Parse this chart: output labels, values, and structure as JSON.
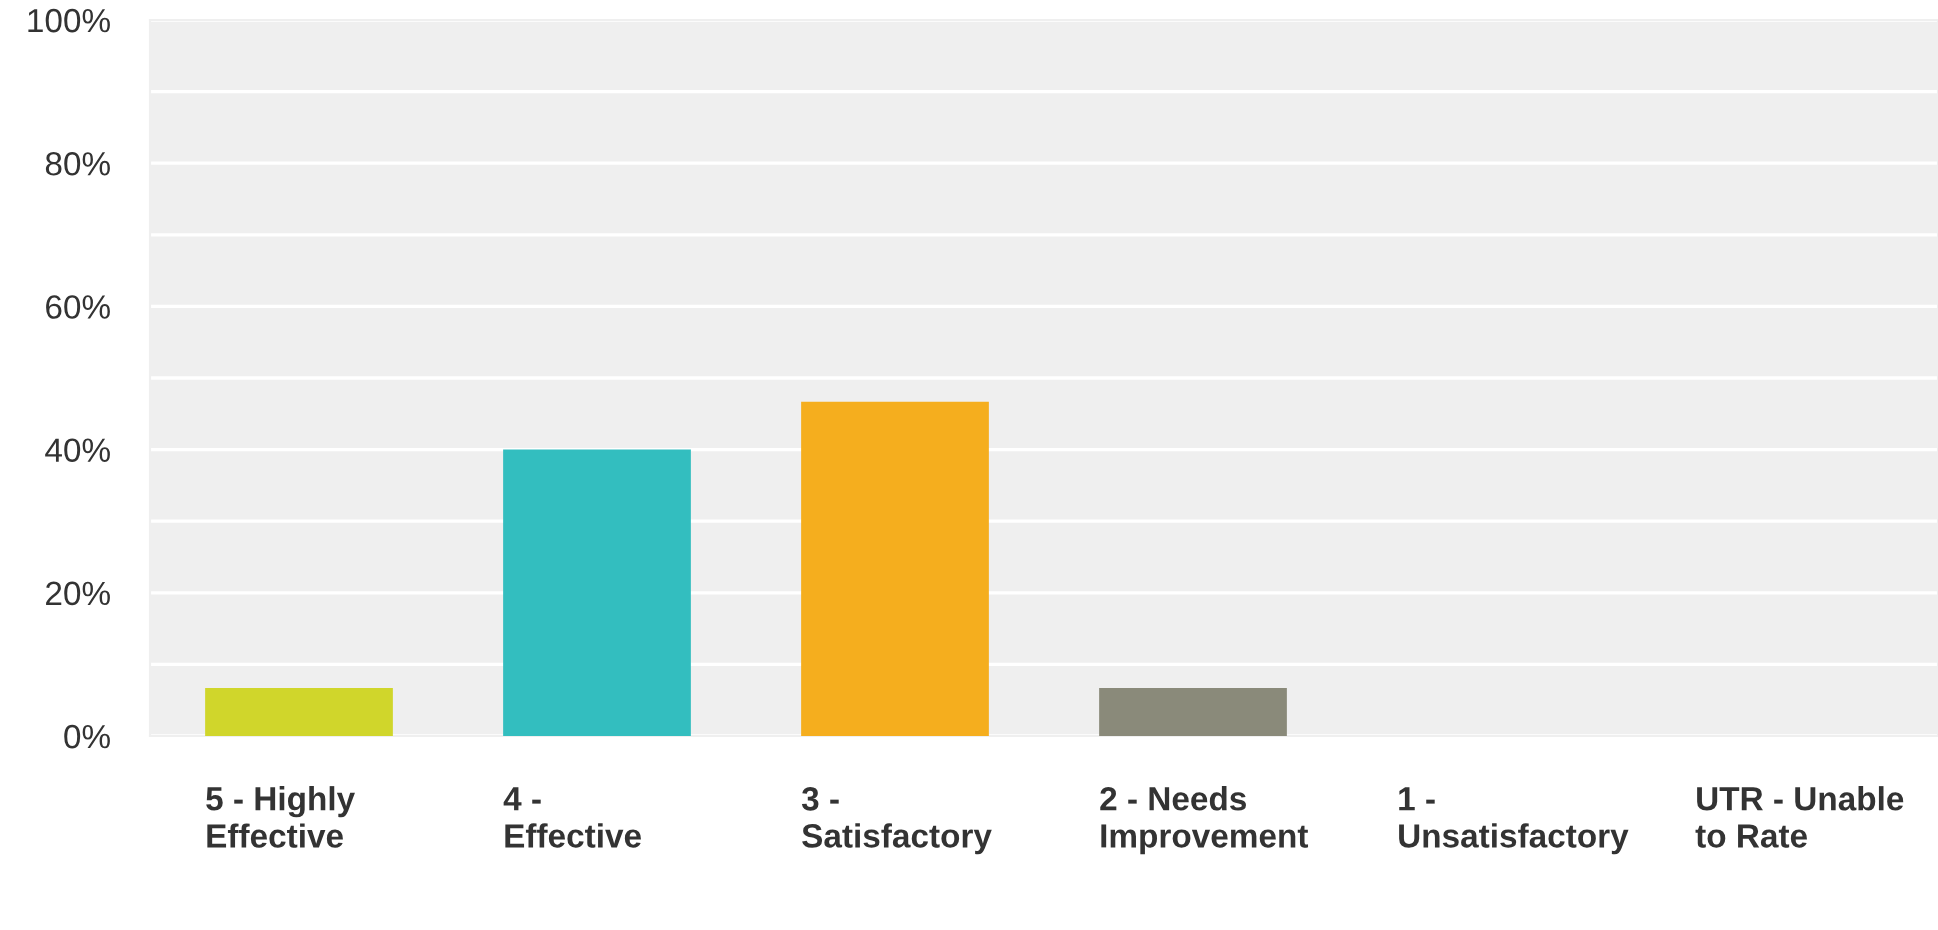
{
  "chart_data": {
    "type": "bar",
    "categories": [
      "5 - Highly Effective",
      "4 - Effective",
      "3 - Satisfactory",
      "2 - Needs Improvement",
      "1 - Unsatisfactory",
      "UTR - Unable to Rate"
    ],
    "values": [
      6.7,
      40,
      46.7,
      6.7,
      0,
      0
    ],
    "colors": [
      "#d0d62b",
      "#33bebf",
      "#f5ae1e",
      "#8a8a7a",
      "#e0605a",
      "#8c5fa5"
    ],
    "ylim": [
      0,
      100
    ],
    "yticks": [
      {
        "value": 0,
        "label": "0%"
      },
      {
        "value": 10,
        "label": null
      },
      {
        "value": 20,
        "label": "20%"
      },
      {
        "value": 30,
        "label": null
      },
      {
        "value": 40,
        "label": "40%"
      },
      {
        "value": 50,
        "label": null
      },
      {
        "value": 60,
        "label": "60%"
      },
      {
        "value": 70,
        "label": null
      },
      {
        "value": 80,
        "label": "80%"
      },
      {
        "value": 90,
        "label": null
      },
      {
        "value": 100,
        "label": "100%"
      }
    ],
    "grid": "y",
    "legend": false
  }
}
